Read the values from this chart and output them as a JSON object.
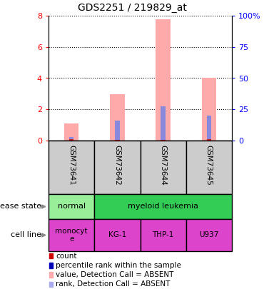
{
  "title": "GDS2251 / 219829_at",
  "samples": [
    "GSM73641",
    "GSM73642",
    "GSM73644",
    "GSM73645"
  ],
  "pink_bars": [
    1.1,
    2.95,
    7.75,
    4.0
  ],
  "blue_segments": [
    0.22,
    1.3,
    2.18,
    1.62
  ],
  "red_bars": [
    0.09,
    0.06,
    0.06,
    0.07
  ],
  "left_ylim": [
    0,
    8
  ],
  "right_ylim": [
    0,
    100
  ],
  "left_yticks": [
    0,
    2,
    4,
    6,
    8
  ],
  "right_yticks": [
    0,
    25,
    50,
    75,
    100
  ],
  "right_yticklabels": [
    "0",
    "25",
    "50",
    "75",
    "100%"
  ],
  "legend_items": [
    {
      "label": "count",
      "color": "#cc0000"
    },
    {
      "label": "percentile rank within the sample",
      "color": "#0000bb"
    },
    {
      "label": "value, Detection Call = ABSENT",
      "color": "#ffaaaa"
    },
    {
      "label": "rank, Detection Call = ABSENT",
      "color": "#aaaaee"
    }
  ],
  "normal_color": "#99ee99",
  "leukemia_color": "#33cc55",
  "cell_color": "#dd44cc",
  "sample_gray": "#cccccc",
  "fig_width": 3.7,
  "fig_height": 4.05,
  "bar_width": 0.32,
  "thin_bar_width": 0.1
}
